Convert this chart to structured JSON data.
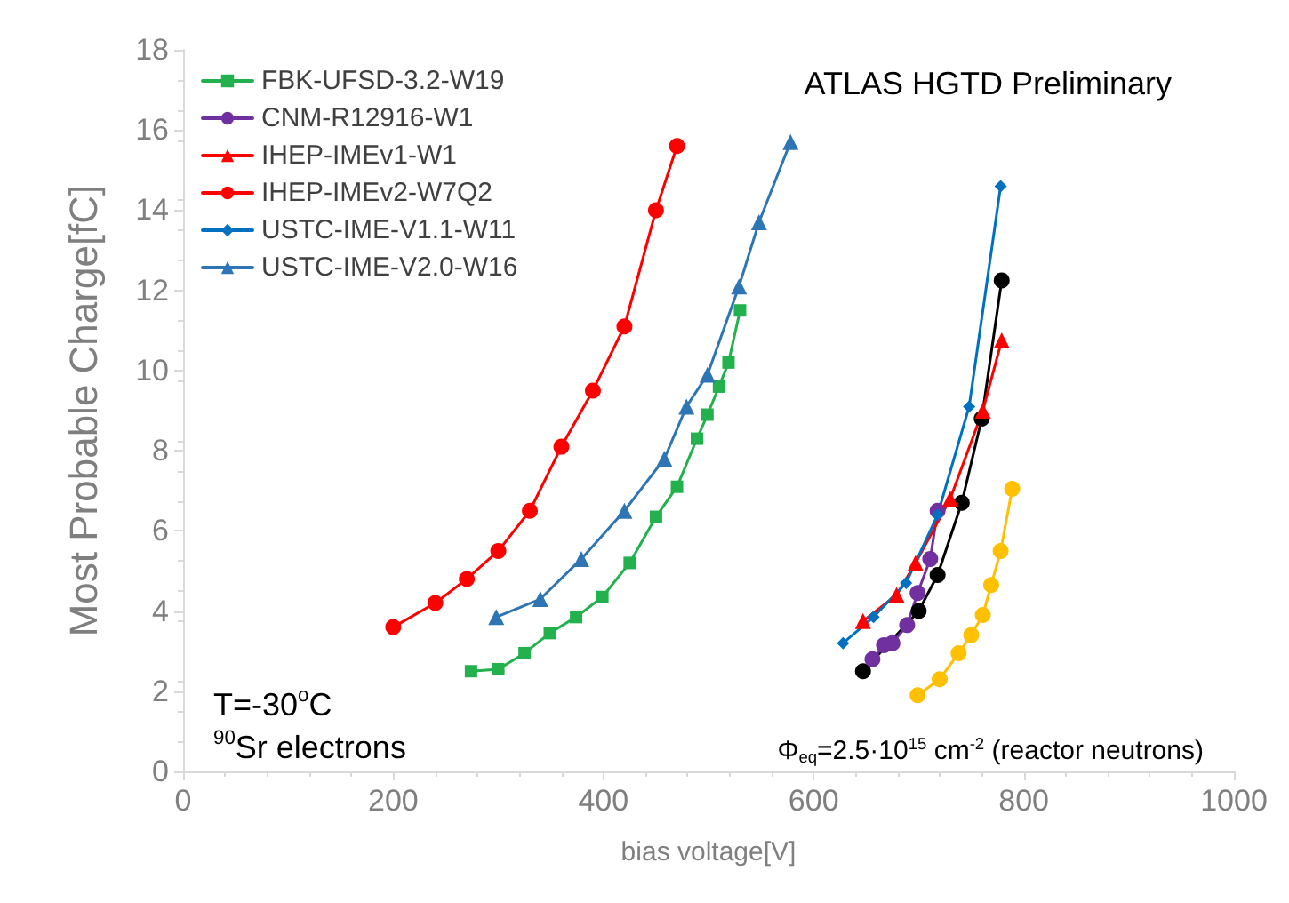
{
  "chart_data": {
    "type": "line",
    "xlabel": "bias voltage[V]",
    "ylabel": "Most Probable Charge[fC]",
    "xlim": [
      0,
      1000
    ],
    "xticks": [
      0,
      200,
      400,
      600,
      800,
      1000
    ],
    "ylim": [
      0,
      18
    ],
    "yticks": [
      0,
      2,
      4,
      6,
      8,
      10,
      12,
      14,
      16,
      18
    ],
    "grid": false,
    "legend": "top left",
    "annotations": [
      "ATLAS HGTD Preliminary",
      "T=-30$^{o}$C",
      "$^{90}$Sr electrons",
      "Φ$_{eq}$=2.5·10$^{15}$ cm$^{-2}$ (reactor neutrons)"
    ],
    "series": [
      {
        "color": "#000000",
        "marker": "circle",
        "x": [
          647,
          700,
          718,
          741,
          760,
          779
        ],
        "values": [
          2.5,
          4.0,
          4.9,
          6.7,
          8.8,
          12.25
        ]
      },
      {
        "name": "FBK-UFSD-3.2-W19",
        "color": "#22b14c",
        "marker": "square",
        "x": [
          274,
          300,
          325,
          349,
          374,
          399,
          425,
          450,
          470,
          489,
          499,
          510,
          519,
          530
        ],
        "values": [
          2.5,
          2.55,
          2.95,
          3.45,
          3.85,
          4.35,
          5.2,
          6.35,
          7.1,
          8.3,
          8.9,
          9.6,
          10.2,
          11.5
        ]
      },
      {
        "name": "CNM-R12916-W1",
        "color": "#7030a0",
        "marker": "circle",
        "x": [
          656,
          667,
          675,
          689,
          699,
          711,
          718
        ],
        "values": [
          2.8,
          3.15,
          3.2,
          3.65,
          4.45,
          5.3,
          6.5
        ]
      },
      {
        "name": "IHEP-IMEv1-W1",
        "color": "#ff0000",
        "marker": "triangle",
        "x": [
          647,
          679,
          697,
          730,
          761,
          779
        ],
        "values": [
          3.75,
          4.4,
          5.2,
          6.8,
          9.0,
          10.75
        ]
      },
      {
        "name": "IHEP-IMEv2-W7Q2",
        "color": "#ff0000",
        "marker": "circle",
        "x": [
          200,
          240,
          270,
          300,
          330,
          360,
          390,
          420,
          450,
          470
        ],
        "values": [
          3.6,
          4.2,
          4.8,
          5.5,
          6.5,
          8.1,
          9.5,
          11.1,
          14.0,
          15.6
        ]
      },
      {
        "color": "#ffc000",
        "marker": "circle",
        "x": [
          699,
          720,
          738,
          750,
          761,
          769,
          778,
          789
        ],
        "values": [
          1.9,
          2.3,
          2.95,
          3.4,
          3.9,
          4.65,
          5.5,
          7.05
        ]
      },
      {
        "name": "USTC-IME-V1.1-W11",
        "color": "#0070c0",
        "marker": "diamond",
        "x": [
          628,
          657,
          688,
          718,
          748,
          778
        ],
        "values": [
          3.2,
          3.85,
          4.7,
          6.4,
          9.1,
          14.6
        ]
      },
      {
        "name": "USTC-IME-V2.0-W16",
        "color": "#2e75b6",
        "marker": "triangle",
        "x": [
          298,
          340,
          379,
          420,
          458,
          479,
          499,
          529,
          548,
          578
        ],
        "values": [
          3.85,
          4.3,
          5.3,
          6.5,
          7.8,
          9.1,
          9.9,
          12.1,
          13.7,
          15.7
        ]
      }
    ]
  }
}
